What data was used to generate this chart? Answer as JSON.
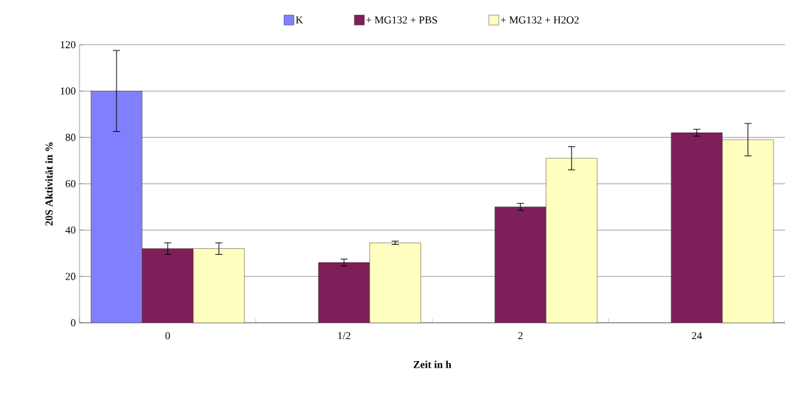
{
  "chart_data": {
    "type": "bar",
    "xlabel": "Zeit in h",
    "ylabel": "20S Aktivität in %",
    "categories": [
      "0",
      "1/2",
      "2",
      "24"
    ],
    "series": [
      {
        "name": "K",
        "color": "#8080ff",
        "values": [
          100,
          null,
          null,
          null
        ],
        "errors": [
          17.5,
          null,
          null,
          null
        ]
      },
      {
        "name": "+ MG132 + PBS",
        "color": "#7f1f5a",
        "values": [
          32,
          26,
          50,
          82
        ],
        "errors": [
          2.5,
          1.5,
          1.5,
          1.5
        ]
      },
      {
        "name": "+ MG132  + H2O2",
        "color": "#ffffc0",
        "values": [
          32,
          34.5,
          71,
          79
        ],
        "errors": [
          2.5,
          0.7,
          5,
          7
        ]
      }
    ],
    "ylim": [
      0,
      120
    ],
    "yticks": [
      0,
      20,
      40,
      60,
      80,
      100,
      120
    ],
    "grid": "y",
    "legend": "top"
  }
}
